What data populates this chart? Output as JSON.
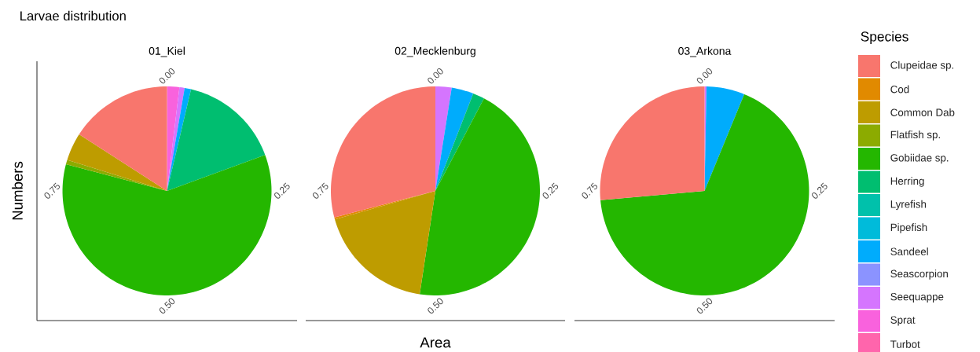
{
  "chart_data": [
    {
      "type": "pie",
      "title": "Larvae distribution",
      "subtitle": "01_Kiel",
      "ylabel": "Numbers",
      "legend_title": "Species",
      "legend": "right",
      "categories": [
        "Clupeidae sp.",
        "Cod",
        "Common Dab",
        "Flatfish sp.",
        "Gobiidae sp.",
        "Herring",
        "Lyrefish",
        "Pipefish",
        "Sandeel",
        "Seascorpion",
        "Seequappe",
        "Sprat",
        "Turbot"
      ],
      "values": [
        15.9,
        0,
        4.3,
        0.7,
        59.7,
        15.7,
        0,
        0,
        1.0,
        0,
        0.8,
        1.9,
        0
      ],
      "colors": [
        "#f8766d",
        "#e18a00",
        "#be9c00",
        "#8cab00",
        "#24b700",
        "#00be70",
        "#00c1ab",
        "#00bbda",
        "#00acfc",
        "#8b93ff",
        "#d575fe",
        "#f962dd",
        "#ff65ac"
      ],
      "annotations": [
        "0.00",
        "0.25",
        "0.50",
        "0.75"
      ]
    },
    {
      "type": "pie",
      "subtitle": "02_Mecklenburg",
      "xlabel": "Area",
      "categories": [
        null,
        null,
        null,
        null,
        null,
        null,
        null,
        null,
        null,
        null,
        null,
        null,
        null
      ],
      "values": [
        29.1,
        0.3,
        18.2,
        0,
        44.7,
        1.8,
        0,
        0,
        3.4,
        0,
        2.5,
        0,
        0
      ],
      "colors": [
        "#f8766d",
        "#e18a00",
        "#be9c00",
        "#8cab00",
        "#24b700",
        "#00be70",
        "#00c1ab",
        "#00bbda",
        "#00acfc",
        "#8b93ff",
        "#d575fe",
        "#f962dd",
        "#ff65ac"
      ],
      "annotations": [
        "0.00",
        "0.25",
        "0.50",
        "0.75"
      ]
    },
    {
      "type": "pie",
      "subtitle": "03_Arkona",
      "categories": [
        null,
        null,
        null,
        null,
        null,
        null,
        null,
        null,
        null,
        null,
        null,
        null,
        null
      ],
      "values": [
        26.4,
        0,
        0,
        0,
        67.4,
        0,
        0,
        0,
        5.9,
        0,
        0.3,
        0,
        0
      ],
      "colors": [
        "#f8766d",
        "#e18a00",
        "#be9c00",
        "#8cab00",
        "#24b700",
        "#00be70",
        "#00c1ab",
        "#00bbda",
        "#00acfc",
        "#8b93ff",
        "#d575fe",
        "#f962dd",
        "#ff65ac"
      ],
      "annotations": [
        "0.00",
        "0.25",
        "0.50",
        "0.75"
      ]
    }
  ]
}
